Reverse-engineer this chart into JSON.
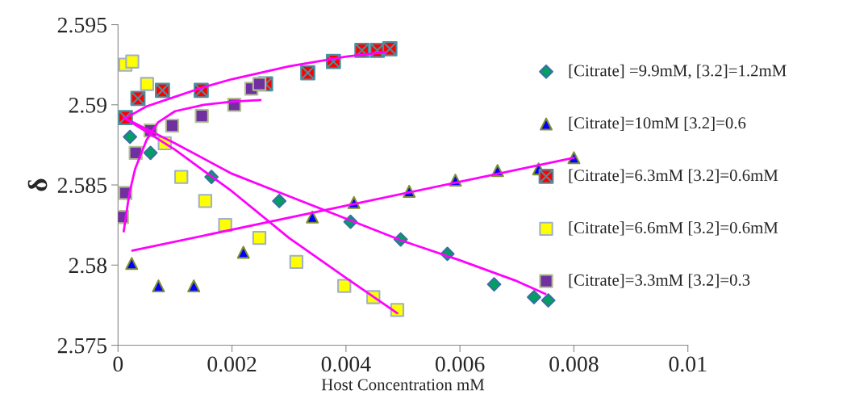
{
  "chart_data": {
    "type": "scatter",
    "xlabel": "Host Concentration mM",
    "ylabel": "δ",
    "xlim": [
      0,
      0.01
    ],
    "ylim": [
      2.575,
      2.595
    ],
    "xticks": [
      0,
      0.002,
      0.004,
      0.006,
      0.008,
      0.01
    ],
    "yticks": [
      2.575,
      2.58,
      2.585,
      2.59,
      2.595
    ],
    "grid": false,
    "legend": "right",
    "series": [
      {
        "name": "[Citrate] =9.9mM, [3.2]=1.2mM",
        "color": "#00a060",
        "marker": "diamond",
        "x": [
          0.00021,
          0.00057,
          0.00164,
          0.00283,
          0.00408,
          0.00496,
          0.00578,
          0.0066,
          0.0073,
          0.00755
        ],
        "values": [
          2.588,
          2.587,
          2.5855,
          2.584,
          2.5827,
          2.5816,
          2.5807,
          2.5788,
          2.578,
          2.5778
        ]
      },
      {
        "name": "[Citrate]=10mM [3.2]=0.6",
        "color": "#0000ff",
        "marker": "triangle",
        "x": [
          0.00024,
          0.00071,
          0.00133,
          0.0022,
          0.00341,
          0.00414,
          0.00511,
          0.00592,
          0.00666,
          0.00738,
          0.008
        ],
        "values": [
          2.5801,
          2.5787,
          2.5787,
          2.5808,
          2.583,
          2.5839,
          2.5846,
          2.5853,
          2.5859,
          2.586,
          2.5867
        ]
      },
      {
        "name": "[Citrate]=6.3mM [3.2]=0.6mM",
        "color": "#ff0000",
        "marker": "cross",
        "x": [
          0.00013,
          0.00035,
          0.00078,
          0.00146,
          0.00259,
          0.00333,
          0.00378,
          0.00428,
          0.00455,
          0.00477
        ],
        "values": [
          2.5892,
          2.5904,
          2.5909,
          2.5909,
          2.5913,
          2.592,
          2.5927,
          2.5934,
          2.5934,
          2.5935
        ]
      },
      {
        "name": "[Citrate]=6.6mM [3.2]=0.6mM",
        "color": "#ffff00",
        "marker": "square",
        "x": [
          0.00013,
          0.00025,
          0.00051,
          0.00082,
          0.00111,
          0.00153,
          0.00188,
          0.00248,
          0.00313,
          0.00397,
          0.00448,
          0.0049
        ],
        "values": [
          2.5925,
          2.5927,
          2.5913,
          2.5876,
          2.5855,
          2.584,
          2.5825,
          2.5817,
          2.5802,
          2.5787,
          2.578,
          2.5772
        ]
      },
      {
        "name": "[Citrate]=3.3mM [3.2]=0.3",
        "color": "#7030a0",
        "marker": "square",
        "x": [
          7e-05,
          0.00013,
          0.00031,
          0.00057,
          0.00095,
          0.00147,
          0.00204,
          0.00234,
          0.00248
        ],
        "values": [
          2.583,
          2.5845,
          2.587,
          2.5884,
          2.5887,
          2.5893,
          2.59,
          2.591,
          2.5913
        ]
      },
      {
        "type": "line",
        "color": "#ff00ff",
        "marker": "none",
        "x": [
          0.0001,
          0.0005,
          0.001,
          0.0015,
          0.002,
          0.003,
          0.004,
          0.0047
        ],
        "values": [
          2.5891,
          2.5899,
          2.5905,
          2.5911,
          2.5916,
          2.5924,
          2.593,
          2.5933
        ]
      },
      {
        "type": "line",
        "color": "#ff00ff",
        "marker": "none",
        "x": [
          0.0001,
          0.0002,
          0.0003,
          0.0005,
          0.0007,
          0.001,
          0.0015,
          0.002,
          0.0025
        ],
        "values": [
          2.5821,
          2.5845,
          2.586,
          2.5878,
          2.5889,
          2.5896,
          2.59,
          2.5902,
          2.5903
        ]
      },
      {
        "type": "line",
        "color": "#ff00ff",
        "marker": "none",
        "x": [
          0.0001,
          0.001,
          0.002,
          0.003,
          0.004,
          0.005,
          0.006,
          0.007,
          0.0075
        ],
        "values": [
          2.5892,
          2.5876,
          2.5857,
          2.5843,
          2.5829,
          2.5815,
          2.5803,
          2.579,
          2.5782
        ]
      },
      {
        "type": "line",
        "color": "#ff00ff",
        "marker": "none",
        "x": [
          0.0001,
          0.001,
          0.002,
          0.003,
          0.004,
          0.0049
        ],
        "values": [
          2.5892,
          2.5872,
          2.5846,
          2.5817,
          2.5792,
          2.577
        ]
      },
      {
        "type": "line",
        "color": "#ff00ff",
        "marker": "none",
        "x": [
          0.00025,
          0.008
        ],
        "values": [
          2.5809,
          2.5867
        ]
      }
    ]
  }
}
